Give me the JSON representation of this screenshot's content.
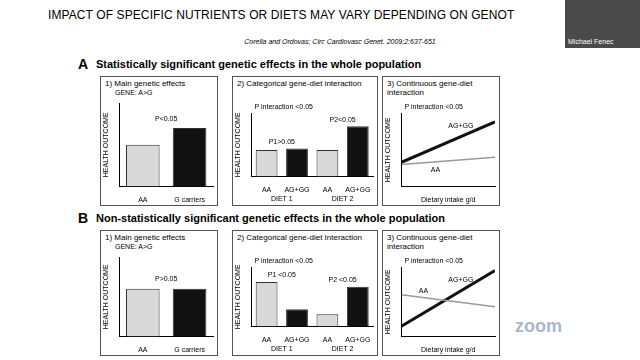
{
  "slide_title": "IMPACT OF SPECIFIC NUTRIENTS OR DIETS MAY VARY DEPENDING ON GENOT",
  "citation": "Corella and Ordovas; Circ Cardiovasc Genet. 2009;2:637-651",
  "presenter": "Michael Fenec",
  "watermark": "zoom",
  "sections": [
    {
      "label": "A",
      "title": "Statistically significant genetic effects in the whole population"
    },
    {
      "label": "B",
      "title": "Non-statistically significant genetic effects in the whole population"
    }
  ],
  "chart_data": [
    {
      "type": "bar",
      "title": "1) Main genetic effects",
      "subtitle": "GENE: A>G",
      "annotation": "P<0.05",
      "y_label": "HEALTH OUTCOME",
      "categories": [
        "AA",
        "G carriers"
      ],
      "values": [
        5,
        7
      ],
      "colors": [
        "#d9d9d9",
        "#111111"
      ],
      "ylim": [
        0,
        10
      ],
      "grid": false,
      "tick_labels": "x"
    },
    {
      "type": "bar",
      "title": "2) Categorical gene-diet interaction",
      "annotation": "P interaction <0.05",
      "y_label": "HEALTH OUTCOME",
      "categories": [
        "AA",
        "AG+GG",
        "AA",
        "AG+GG"
      ],
      "values": [
        5,
        5.3,
        5,
        9.5
      ],
      "groups": [
        "DIET 1",
        "DIET 2"
      ],
      "group_annotations": [
        "P1>0.05",
        "P2<0.05"
      ],
      "colors": [
        "#d9d9d9",
        "#111111",
        "#d9d9d9",
        "#111111"
      ],
      "ylim": [
        0,
        12
      ],
      "grid": false,
      "tick_labels": "x"
    },
    {
      "type": "line",
      "title": "3) Continuous gene-diet interaction",
      "annotation": "P interaction <0.05",
      "y_label": "HEALTH OUTCOME",
      "x_label": "Dietary intake g/d",
      "x": [
        0,
        10
      ],
      "series": [
        {
          "name": "AA",
          "color": "#999999",
          "values": [
            3,
            4
          ]
        },
        {
          "name": "AG+GG",
          "color": "#111111",
          "values": [
            3.3,
            8.8
          ]
        }
      ],
      "xlim": [
        0,
        10
      ],
      "ylim": [
        0,
        10
      ],
      "grid": false,
      "tick_labels": false
    },
    {
      "type": "bar",
      "title": "1) Main genetic effects",
      "subtitle": "GENE: A>G",
      "annotation": "P>0.05",
      "y_label": "HEALTH OUTCOME",
      "categories": [
        "AA",
        "G carriers"
      ],
      "values": [
        6,
        6
      ],
      "colors": [
        "#d9d9d9",
        "#111111"
      ],
      "ylim": [
        0,
        10
      ],
      "grid": false,
      "tick_labels": "x"
    },
    {
      "type": "bar",
      "title": "2) Categorical gene-diet Interaction",
      "annotation": "P interaction <0.05",
      "y_label": "HEALTH OUTCOME",
      "categories": [
        "AA",
        "AG+GG",
        "AA",
        "AG+GG"
      ],
      "values": [
        9,
        3.5,
        2.5,
        8
      ],
      "groups": [
        "DIET 1",
        "DIET 2"
      ],
      "group_annotations": [
        "P1 <0.05",
        "P2 <0.05"
      ],
      "colors": [
        "#d9d9d9",
        "#111111",
        "#d9d9d9",
        "#111111"
      ],
      "ylim": [
        0,
        12
      ],
      "grid": false,
      "tick_labels": "x"
    },
    {
      "type": "line",
      "title": "3) Continuous gene-diet interaction",
      "annotation": "P interaction <0.05",
      "y_label": "HEALTH OUTCOME",
      "x_label": "Dietary intake g/d",
      "x": [
        0,
        10
      ],
      "series": [
        {
          "name": "AA",
          "color": "#999999",
          "values": [
            6,
            4.3
          ]
        },
        {
          "name": "AG+GG",
          "color": "#111111",
          "values": [
            1.5,
            9.5
          ]
        }
      ],
      "xlim": [
        0,
        10
      ],
      "ylim": [
        0,
        10
      ],
      "grid": false,
      "tick_labels": false
    }
  ]
}
